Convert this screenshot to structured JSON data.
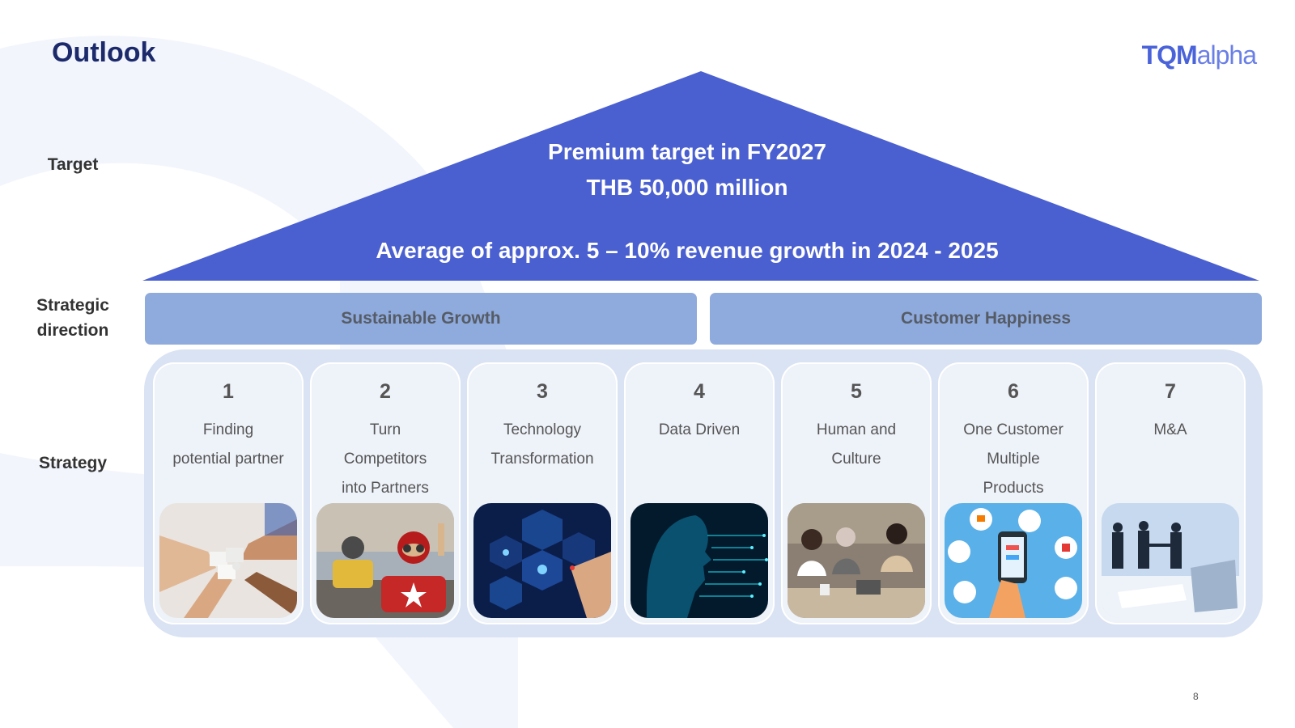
{
  "title": "Outlook",
  "logo": {
    "bold": "TQM",
    "light": "alpha"
  },
  "labels": {
    "target": "Target",
    "strategic_direction": [
      "Strategic",
      "direction"
    ],
    "strategy": "Strategy"
  },
  "target": {
    "line1": "Premium target in FY2027",
    "line2": "THB 50,000 million",
    "line3": "Average of approx. 5 – 10% revenue growth in 2024 - 2025"
  },
  "directions": [
    "Sustainable Growth",
    "Customer Happiness"
  ],
  "strategies": [
    {
      "num": "1",
      "lines": [
        "Finding",
        "potential partner"
      ],
      "image": "puzzle-hands-photo"
    },
    {
      "num": "2",
      "lines": [
        "Turn",
        "Competitors",
        "into Partners"
      ],
      "image": "kids-racing-cars-photo"
    },
    {
      "num": "3",
      "lines": [
        "Technology",
        "Transformation"
      ],
      "image": "digital-transformation-photo"
    },
    {
      "num": "4",
      "lines": [
        "Data Driven"
      ],
      "image": "ai-circuit-face-photo"
    },
    {
      "num": "5",
      "lines": [
        "Human and",
        "Culture"
      ],
      "image": "team-meeting-photo"
    },
    {
      "num": "6",
      "lines": [
        "One Customer",
        "Multiple",
        "Products"
      ],
      "image": "phone-services-illustration"
    },
    {
      "num": "7",
      "lines": [
        "M&A"
      ],
      "image": "business-handshake-photo"
    }
  ],
  "page_number": "8",
  "colors": {
    "roof": "#4a5fd0",
    "pillar": "#8faadc",
    "base": "#dae3f3",
    "title": "#1c2a6b"
  }
}
